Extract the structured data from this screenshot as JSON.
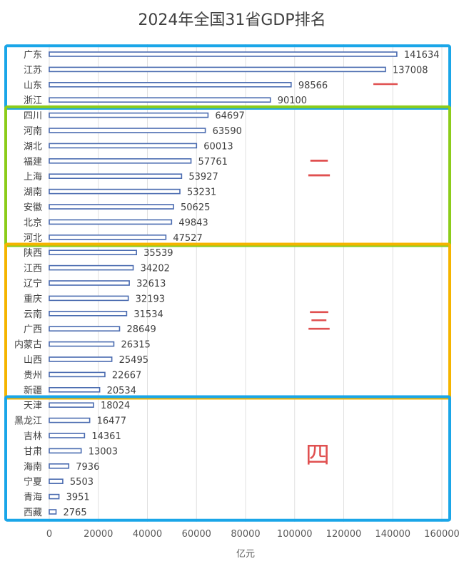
{
  "chart_data": {
    "type": "bar",
    "orientation": "horizontal",
    "title": "2024年全国31省GDP排名",
    "xlabel": "亿元",
    "ylabel": "",
    "xlim": [
      0,
      160000
    ],
    "xticks": [
      "0",
      "20000",
      "40000",
      "60000",
      "80000",
      "100000",
      "120000",
      "140000",
      "160000"
    ],
    "grid": true,
    "categories": [
      "广东",
      "江苏",
      "山东",
      "浙江",
      "四川",
      "河南",
      "湖北",
      "福建",
      "上海",
      "湖南",
      "安徽",
      "北京",
      "河北",
      "陕西",
      "江西",
      "辽宁",
      "重庆",
      "云南",
      "广西",
      "内蒙古",
      "山西",
      "贵州",
      "新疆",
      "天津",
      "黑龙江",
      "吉林",
      "甘肃",
      "海南",
      "宁夏",
      "青海",
      "西藏"
    ],
    "values": [
      141634,
      137008,
      98566,
      90100,
      64697,
      63590,
      60013,
      57761,
      53927,
      53231,
      50625,
      49843,
      47527,
      35539,
      34202,
      32613,
      32193,
      31534,
      28649,
      26315,
      25495,
      22667,
      20534,
      18024,
      16477,
      14361,
      13003,
      7936,
      5503,
      3951,
      2765
    ],
    "bar_color": "#4a6bb0",
    "groups": [
      {
        "label": "一",
        "first": 0,
        "last": 3,
        "box_color": "#1aa6e8"
      },
      {
        "label": "二",
        "first": 4,
        "last": 12,
        "box_color": "#8ccc1a"
      },
      {
        "label": "三",
        "first": 13,
        "last": 22,
        "box_color": "#f5b400"
      },
      {
        "label": "四",
        "first": 23,
        "last": 30,
        "box_color": "#1aa6e8"
      }
    ],
    "annotation_color": "#e05050"
  }
}
